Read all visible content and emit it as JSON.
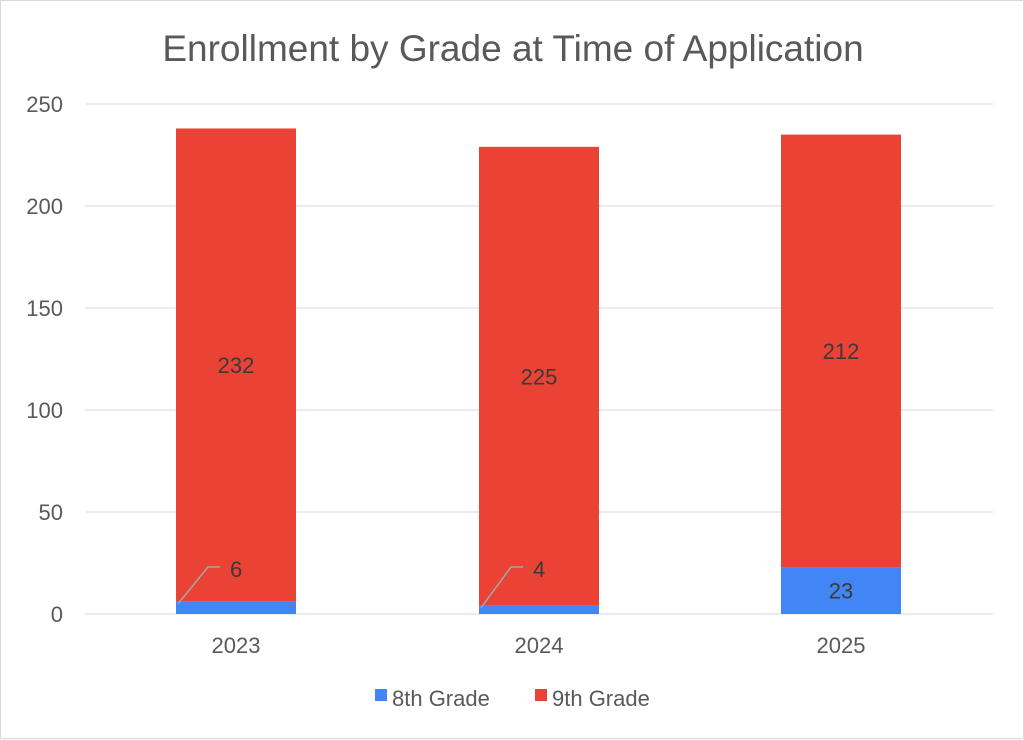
{
  "chart_data": {
    "type": "bar",
    "stacked": true,
    "title": "Enrollment by Grade at Time of Application",
    "categories": [
      "2023",
      "2024",
      "2025"
    ],
    "series": [
      {
        "name": "8th Grade",
        "values": [
          6,
          4,
          23
        ],
        "color": "#4285f4"
      },
      {
        "name": "9th Grade",
        "values": [
          232,
          225,
          212
        ],
        "color": "#ea4335"
      }
    ],
    "yticks": [
      "0",
      "50",
      "100",
      "150",
      "200",
      "250"
    ],
    "ylim": [
      0,
      250
    ],
    "grid": true,
    "legend_position": "bottom",
    "xlabel": "",
    "ylabel": ""
  }
}
